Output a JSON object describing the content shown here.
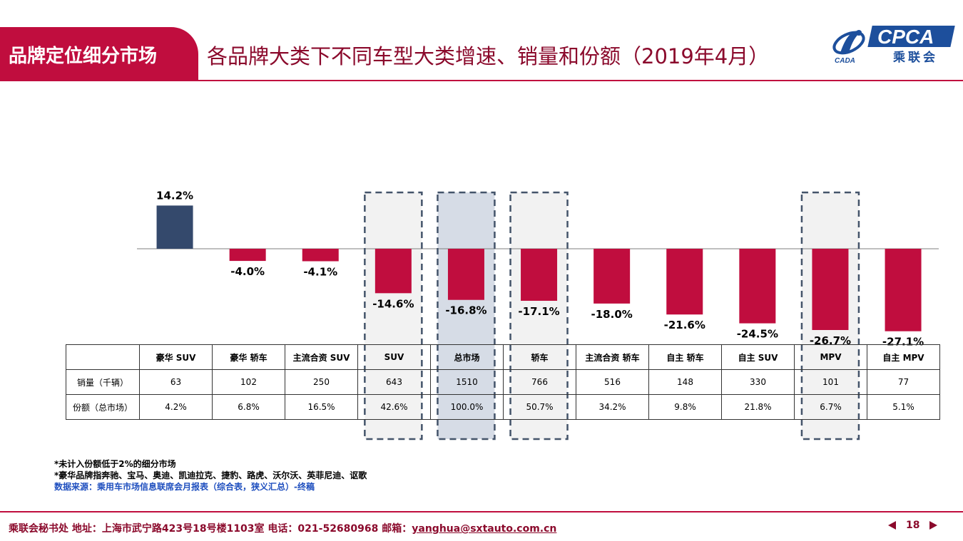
{
  "header": {
    "section": "品牌定位细分市场",
    "title": "各品牌大类下不同车型大类增速、销量和份额（2019年4月）",
    "logo_text": "CPCA",
    "logo_sub": "乘联会",
    "logo_small": "CADA"
  },
  "colors": {
    "accent": "#c00d3e",
    "positive_bar": "#34496c",
    "negative_bar": "#c00d3e",
    "highlight_gray": "#f2f2f2",
    "highlight_blue": "#d6dce6",
    "dash": "#44546a"
  },
  "chart_data": {
    "type": "bar",
    "categories": [
      "豪华 SUV",
      "豪华 轿车",
      "主流合资 SUV",
      "SUV",
      "总市场",
      "轿车",
      "主流合资 轿车",
      "自主 轿车",
      "自主 SUV",
      "MPV",
      "自主 MPV"
    ],
    "values": [
      14.2,
      -4.0,
      -4.1,
      -14.6,
      -16.8,
      -17.1,
      -18.0,
      -21.6,
      -24.5,
      -26.7,
      -27.1
    ],
    "value_labels": [
      "14.2%",
      "-4.0%",
      "-4.1%",
      "-14.6%",
      "-16.8%",
      "-17.1%",
      "-18.0%",
      "-21.6%",
      "-24.5%",
      "-26.7%",
      "-27.1%"
    ],
    "highlighted": [
      {
        "category": "SUV",
        "style": "gray"
      },
      {
        "category": "总市场",
        "style": "blue"
      },
      {
        "category": "轿车",
        "style": "gray"
      },
      {
        "category": "MPV",
        "style": "gray"
      }
    ]
  },
  "table": {
    "rows": [
      {
        "label": "销量（千辆）",
        "values": [
          "63",
          "102",
          "250",
          "643",
          "1510",
          "766",
          "516",
          "148",
          "330",
          "101",
          "77"
        ]
      },
      {
        "label": "份额（总市场）",
        "values": [
          "4.2%",
          "6.8%",
          "16.5%",
          "42.6%",
          "100.0%",
          "50.7%",
          "34.2%",
          "9.8%",
          "21.8%",
          "6.7%",
          "5.1%"
        ]
      }
    ]
  },
  "notes": {
    "line1": "*未计入份额低于2%的细分市场",
    "line2": "*豪华品牌指奔驰、宝马、奥迪、凯迪拉克、捷豹、路虎、沃尔沃、英菲尼迪、讴歌",
    "source": "数据来源：乘用车市场信息联席会月报表（综合表，狭义汇总）-终稿"
  },
  "footer": {
    "text": "乘联会秘书处   地址：上海市武宁路423号18号楼1103室   电话：021-52680968   邮箱：",
    "email": "yanghua@sxtauto.com.cn",
    "page": "18"
  }
}
